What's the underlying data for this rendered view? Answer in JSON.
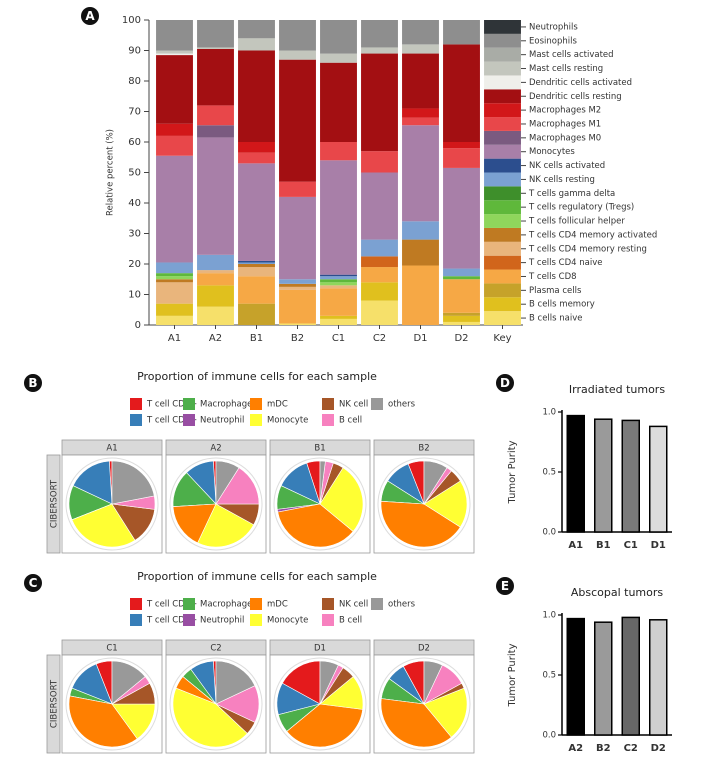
{
  "chart_data": [
    {
      "type": "stacked_bar",
      "panel": "A",
      "ylabel": "Relative percent (%)",
      "categories": [
        "A1",
        "A2",
        "B1",
        "B2",
        "C1",
        "C2",
        "D1",
        "D2",
        "Key"
      ],
      "ylim": [
        0,
        100
      ],
      "yticks": [
        0,
        10,
        20,
        30,
        40,
        50,
        60,
        70,
        80,
        90,
        100
      ],
      "series": [
        {
          "name": "B cells naive",
          "color": "#f6e06a",
          "values": [
            3,
            6,
            0,
            0.5,
            2,
            8,
            0,
            1,
            null
          ]
        },
        {
          "name": "B cells memory",
          "color": "#e0c01e",
          "values": [
            4,
            7,
            0,
            0,
            1,
            6,
            0,
            2,
            null
          ]
        },
        {
          "name": "Plasma cells",
          "color": "#c6a22a",
          "values": [
            0,
            0,
            7,
            0,
            0,
            0,
            0,
            1,
            null
          ]
        },
        {
          "name": "T cells CD8",
          "color": "#f6a845",
          "values": [
            0,
            4,
            9,
            11,
            9,
            5,
            19.5,
            11,
            null
          ]
        },
        {
          "name": "T cells CD4 naive",
          "color": "#d1651b",
          "values": [
            0,
            0,
            0,
            0,
            0,
            3.5,
            0,
            0,
            null
          ]
        },
        {
          "name": "T cells CD4 memory resting",
          "color": "#e9b57c",
          "values": [
            7,
            1,
            3,
            1,
            1,
            0,
            0,
            0,
            null
          ]
        },
        {
          "name": "T cells CD4 memory activated",
          "color": "#bf7a22",
          "values": [
            1,
            0,
            1,
            1,
            0,
            0,
            8.5,
            0,
            null
          ]
        },
        {
          "name": "T cells follicular helper",
          "color": "#8fd65c",
          "values": [
            1,
            0,
            0,
            0,
            1,
            0,
            0,
            0,
            null
          ]
        },
        {
          "name": "T cells regulatory (Tregs)",
          "color": "#5fb83b",
          "values": [
            1,
            0,
            0,
            0,
            1,
            0,
            0,
            1,
            null
          ]
        },
        {
          "name": "T cells gamma delta",
          "color": "#3e8f2b",
          "values": [
            0,
            0,
            0,
            0,
            0,
            0,
            0,
            0,
            null
          ]
        },
        {
          "name": "NK cells resting",
          "color": "#7ba1d2",
          "values": [
            3.5,
            5,
            0.5,
            1.5,
            1,
            5.5,
            6,
            2.5,
            null
          ]
        },
        {
          "name": "NK cells activated",
          "color": "#2c4e8e",
          "values": [
            0,
            0,
            0.5,
            0,
            0.5,
            0,
            0,
            0,
            null
          ]
        },
        {
          "name": "Monocytes",
          "color": "#a87fa8",
          "values": [
            35,
            38.5,
            32,
            27,
            37.5,
            22,
            31.5,
            33,
            null
          ]
        },
        {
          "name": "Macrophages M0",
          "color": "#7a5a80",
          "values": [
            0,
            4,
            0,
            0,
            0,
            0,
            0,
            0,
            null
          ]
        },
        {
          "name": "Macrophages M1",
          "color": "#e8474a",
          "values": [
            6.5,
            6.5,
            3.5,
            5,
            6,
            7,
            2.5,
            6.5,
            null
          ]
        },
        {
          "name": "Macrophages M2",
          "color": "#d21719",
          "values": [
            4,
            0,
            3.5,
            0,
            0,
            0,
            3,
            2,
            null
          ]
        },
        {
          "name": "Dendritic cells resting",
          "color": "#a30f12",
          "values": [
            22.5,
            18.5,
            30,
            40,
            26,
            32,
            18,
            32,
            null
          ]
        },
        {
          "name": "Dendritic cells activated",
          "color": "#efefea",
          "values": [
            0.5,
            0,
            0,
            0,
            0,
            0,
            0,
            0,
            null
          ]
        },
        {
          "name": "Mast cells resting",
          "color": "#c3c6bd",
          "values": [
            1,
            0.5,
            4,
            3,
            3,
            2,
            3,
            0,
            null
          ]
        },
        {
          "name": "Mast cells activated",
          "color": "#a9aca6",
          "values": [
            0,
            0,
            0,
            0,
            0,
            0,
            0,
            0,
            null
          ]
        },
        {
          "name": "Eosinophils",
          "color": "#8e8e8e",
          "values": [
            10,
            9,
            6,
            10,
            11,
            9,
            8,
            8,
            null
          ]
        },
        {
          "name": "Neutrophils",
          "color": "#2f3438",
          "values": [
            0,
            0,
            0,
            0,
            0,
            0,
            0,
            0,
            null
          ]
        }
      ]
    },
    {
      "type": "pie",
      "panel": "B",
      "title": "Proportion of immune cells for each sample",
      "row_label": "CIBERSORT",
      "categories": [
        "T cell CD8+",
        "T cell CD4+",
        "Macrophage",
        "Neutrophil",
        "mDC",
        "Monocyte",
        "NK cell",
        "B cell",
        "others"
      ],
      "colors": [
        "#e41a1c",
        "#377eb8",
        "#4daf4a",
        "#984ea3",
        "#ff7f00",
        "#ffff33",
        "#a65628",
        "#f781bf",
        "#999999"
      ],
      "facets": [
        {
          "name": "A1",
          "values": [
            1,
            17,
            13,
            0,
            0,
            28,
            14,
            5,
            22
          ]
        },
        {
          "name": "A2",
          "values": [
            1,
            11,
            14,
            0,
            17,
            24,
            8,
            16,
            9
          ]
        },
        {
          "name": "B1",
          "values": [
            5,
            13,
            9,
            1,
            36,
            27,
            4,
            3,
            2
          ]
        },
        {
          "name": "B2",
          "values": [
            6,
            10,
            8,
            0,
            42,
            18,
            5,
            2,
            9
          ]
        }
      ]
    },
    {
      "type": "pie",
      "panel": "C",
      "title": "Proportion of immune cells for each sample",
      "row_label": "CIBERSORT",
      "categories": [
        "T cell CD8+",
        "T cell CD4+",
        "Macrophage",
        "Neutrophil",
        "mDC",
        "Monocyte",
        "NK cell",
        "B cell",
        "others"
      ],
      "colors": [
        "#e41a1c",
        "#377eb8",
        "#4daf4a",
        "#984ea3",
        "#ff7f00",
        "#ffff33",
        "#a65628",
        "#f781bf",
        "#999999"
      ],
      "facets": [
        {
          "name": "C1",
          "values": [
            6,
            13,
            3,
            0,
            38,
            15,
            8,
            3,
            14
          ]
        },
        {
          "name": "C2",
          "values": [
            1,
            9,
            4,
            0,
            5,
            44,
            5,
            14,
            18
          ]
        },
        {
          "name": "D1",
          "values": [
            17,
            12,
            7,
            0,
            37,
            13,
            5,
            2,
            7
          ]
        },
        {
          "name": "D2",
          "values": [
            8,
            7,
            8,
            0,
            38,
            20,
            2,
            10,
            7
          ]
        }
      ]
    },
    {
      "type": "bar",
      "panel": "D",
      "title": "Irradiated tumors",
      "ylabel": "Tumor Purity",
      "categories": [
        "A1",
        "B1",
        "C1",
        "D1"
      ],
      "values": [
        0.97,
        0.94,
        0.93,
        0.88
      ],
      "colors": [
        "#000000",
        "#9a9a9a",
        "#7a7a7a",
        "#dcdcdc"
      ],
      "ylim": [
        0,
        1
      ],
      "yticks": [
        {
          "value": 0,
          "label": "0.0"
        },
        0.5,
        {
          "value": 1,
          "label": "1.0"
        }
      ]
    },
    {
      "type": "bar",
      "panel": "E",
      "title": "Abscopal tumors",
      "ylabel": "Tumor Purity",
      "categories": [
        "A2",
        "B2",
        "C2",
        "D2"
      ],
      "values": [
        0.97,
        0.94,
        0.98,
        0.96
      ],
      "colors": [
        "#000000",
        "#9a9a9a",
        "#676767",
        "#cfcfcf"
      ],
      "ylim": [
        0,
        1
      ],
      "yticks": [
        {
          "value": 0,
          "label": "0.0"
        },
        0.5,
        {
          "value": 1,
          "label": "1.0"
        }
      ]
    }
  ]
}
